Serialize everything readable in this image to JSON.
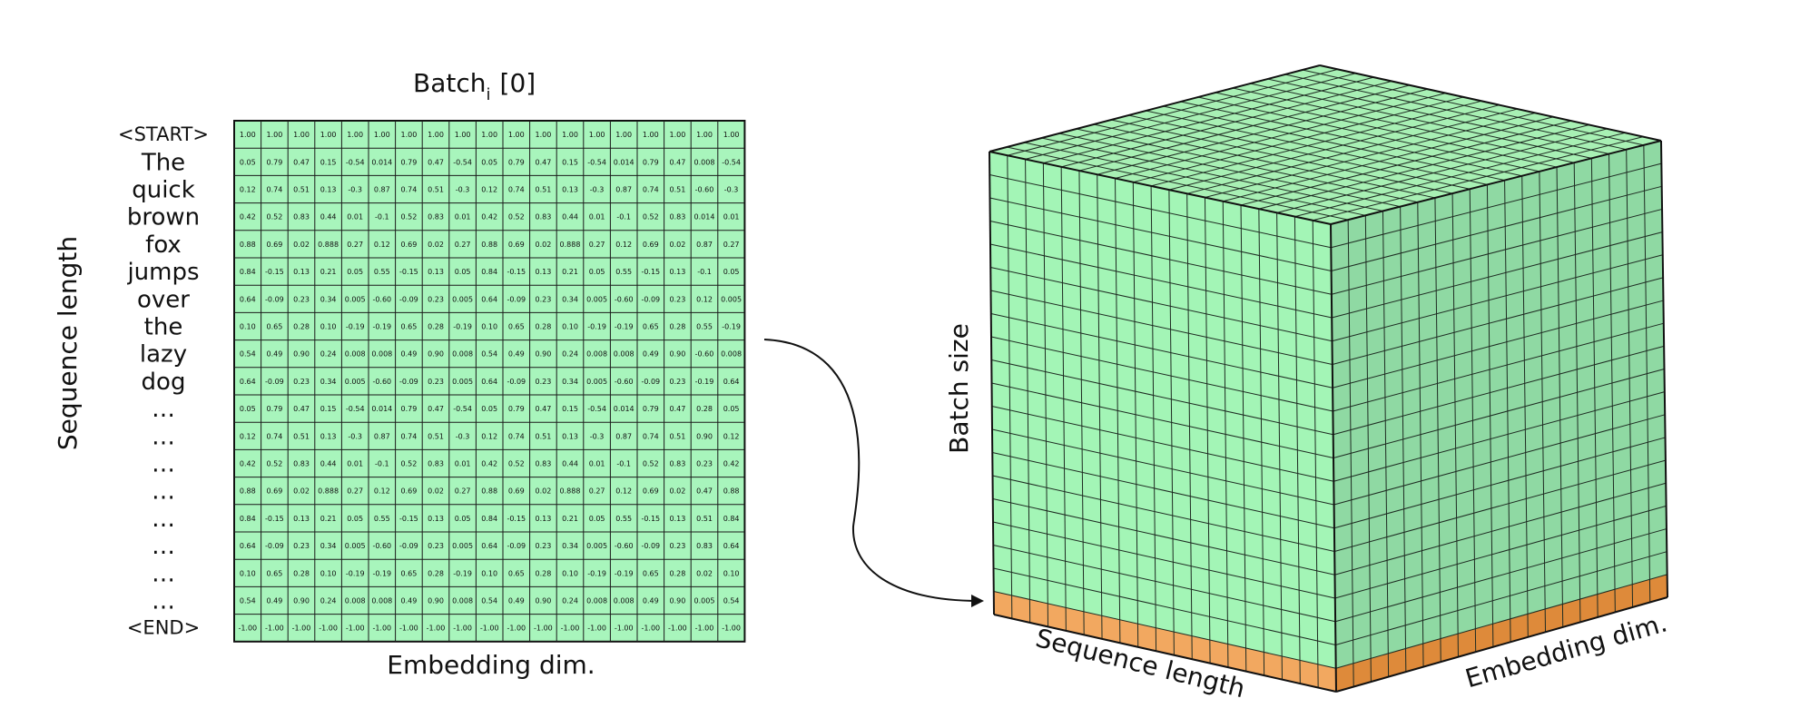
{
  "matrix": {
    "title_main": "Batch",
    "title_sub": "i",
    "title_index": "[0]",
    "xlabel": "Embedding dim.",
    "ylabel": "Sequence length",
    "fill_color": "#a8f5bc",
    "tokens": [
      "<START>",
      "The",
      "quick",
      "brown",
      "fox",
      "jumps",
      "over",
      "the",
      "lazy",
      "dog",
      "…",
      "…",
      "…",
      "…",
      "…",
      "…",
      "…",
      "…",
      "<END>"
    ],
    "rows": [
      [
        "1.00",
        "1.00",
        "1.00",
        "1.00",
        "1.00",
        "1.00",
        "1.00",
        "1.00",
        "1.00",
        "1.00",
        "1.00",
        "1.00",
        "1.00",
        "1.00",
        "1.00",
        "1.00",
        "1.00",
        "1.00",
        "1.00"
      ],
      [
        "0.05",
        "0.79",
        "0.47",
        "0.15",
        "-0.54",
        "0.014",
        "0.79",
        "0.47",
        "-0.54",
        "0.05",
        "0.79",
        "0.47",
        "0.15",
        "-0.54",
        "0.014",
        "0.79",
        "0.47",
        "0.008",
        "-0.54"
      ],
      [
        "0.12",
        "0.74",
        "0.51",
        "0.13",
        "-0.3",
        "0.87",
        "0.74",
        "0.51",
        "-0.3",
        "0.12",
        "0.74",
        "0.51",
        "0.13",
        "-0.3",
        "0.87",
        "0.74",
        "0.51",
        "-0.60",
        "-0.3"
      ],
      [
        "0.42",
        "0.52",
        "0.83",
        "0.44",
        "0.01",
        "-0.1",
        "0.52",
        "0.83",
        "0.01",
        "0.42",
        "0.52",
        "0.83",
        "0.44",
        "0.01",
        "-0.1",
        "0.52",
        "0.83",
        "0.014",
        "0.01"
      ],
      [
        "0.88",
        "0.69",
        "0.02",
        "0.888",
        "0.27",
        "0.12",
        "0.69",
        "0.02",
        "0.27",
        "0.88",
        "0.69",
        "0.02",
        "0.888",
        "0.27",
        "0.12",
        "0.69",
        "0.02",
        "0.87",
        "0.27"
      ],
      [
        "0.84",
        "-0.15",
        "0.13",
        "0.21",
        "0.05",
        "0.55",
        "-0.15",
        "0.13",
        "0.05",
        "0.84",
        "-0.15",
        "0.13",
        "0.21",
        "0.05",
        "0.55",
        "-0.15",
        "0.13",
        "-0.1",
        "0.05"
      ],
      [
        "0.64",
        "-0.09",
        "0.23",
        "0.34",
        "0.005",
        "-0.60",
        "-0.09",
        "0.23",
        "0.005",
        "0.64",
        "-0.09",
        "0.23",
        "0.34",
        "0.005",
        "-0.60",
        "-0.09",
        "0.23",
        "0.12",
        "0.005"
      ],
      [
        "0.10",
        "0.65",
        "0.28",
        "0.10",
        "-0.19",
        "-0.19",
        "0.65",
        "0.28",
        "-0.19",
        "0.10",
        "0.65",
        "0.28",
        "0.10",
        "-0.19",
        "-0.19",
        "0.65",
        "0.28",
        "0.55",
        "-0.19"
      ],
      [
        "0.54",
        "0.49",
        "0.90",
        "0.24",
        "0.008",
        "0.008",
        "0.49",
        "0.90",
        "0.008",
        "0.54",
        "0.49",
        "0.90",
        "0.24",
        "0.008",
        "0.008",
        "0.49",
        "0.90",
        "-0.60",
        "0.008"
      ],
      [
        "0.64",
        "-0.09",
        "0.23",
        "0.34",
        "0.005",
        "-0.60",
        "-0.09",
        "0.23",
        "0.005",
        "0.64",
        "-0.09",
        "0.23",
        "0.34",
        "0.005",
        "-0.60",
        "-0.09",
        "0.23",
        "-0.19",
        "0.64"
      ],
      [
        "0.05",
        "0.79",
        "0.47",
        "0.15",
        "-0.54",
        "0.014",
        "0.79",
        "0.47",
        "-0.54",
        "0.05",
        "0.79",
        "0.47",
        "0.15",
        "-0.54",
        "0.014",
        "0.79",
        "0.47",
        "0.28",
        "0.05"
      ],
      [
        "0.12",
        "0.74",
        "0.51",
        "0.13",
        "-0.3",
        "0.87",
        "0.74",
        "0.51",
        "-0.3",
        "0.12",
        "0.74",
        "0.51",
        "0.13",
        "-0.3",
        "0.87",
        "0.74",
        "0.51",
        "0.90",
        "0.12"
      ],
      [
        "0.42",
        "0.52",
        "0.83",
        "0.44",
        "0.01",
        "-0.1",
        "0.52",
        "0.83",
        "0.01",
        "0.42",
        "0.52",
        "0.83",
        "0.44",
        "0.01",
        "-0.1",
        "0.52",
        "0.83",
        "0.23",
        "0.42"
      ],
      [
        "0.88",
        "0.69",
        "0.02",
        "0.888",
        "0.27",
        "0.12",
        "0.69",
        "0.02",
        "0.27",
        "0.88",
        "0.69",
        "0.02",
        "0.888",
        "0.27",
        "0.12",
        "0.69",
        "0.02",
        "0.47",
        "0.88"
      ],
      [
        "0.84",
        "-0.15",
        "0.13",
        "0.21",
        "0.05",
        "0.55",
        "-0.15",
        "0.13",
        "0.05",
        "0.84",
        "-0.15",
        "0.13",
        "0.21",
        "0.05",
        "0.55",
        "-0.15",
        "0.13",
        "0.51",
        "0.84"
      ],
      [
        "0.64",
        "-0.09",
        "0.23",
        "0.34",
        "0.005",
        "-0.60",
        "-0.09",
        "0.23",
        "0.005",
        "0.64",
        "-0.09",
        "0.23",
        "0.34",
        "0.005",
        "-0.60",
        "-0.09",
        "0.23",
        "0.83",
        "0.64"
      ],
      [
        "0.10",
        "0.65",
        "0.28",
        "0.10",
        "-0.19",
        "-0.19",
        "0.65",
        "0.28",
        "-0.19",
        "0.10",
        "0.65",
        "0.28",
        "0.10",
        "-0.19",
        "-0.19",
        "0.65",
        "0.28",
        "0.02",
        "0.10"
      ],
      [
        "0.54",
        "0.49",
        "0.90",
        "0.24",
        "0.008",
        "0.008",
        "0.49",
        "0.90",
        "0.008",
        "0.54",
        "0.49",
        "0.90",
        "0.24",
        "0.008",
        "0.008",
        "0.49",
        "0.90",
        "0.005",
        "0.54"
      ],
      [
        "-1.00",
        "-1.00",
        "-1.00",
        "-1.00",
        "-1.00",
        "-1.00",
        "-1.00",
        "-1.00",
        "-1.00",
        "-1.00",
        "-1.00",
        "-1.00",
        "-1.00",
        "-1.00",
        "-1.00",
        "-1.00",
        "-1.00",
        "-1.00",
        "-1.00"
      ]
    ]
  },
  "cube": {
    "label_batch": "Batch size",
    "label_sequence": "Sequence length",
    "label_embedding": "Embedding dim.",
    "green_top": "#a8f0b4",
    "green_front": "#a3f5b6",
    "green_side": "#8fd9a3",
    "orange_front": "#f2a860",
    "orange_side": "#de8a3a",
    "cols_front": 19,
    "cols_side": 19,
    "rows_vertical": 19
  }
}
